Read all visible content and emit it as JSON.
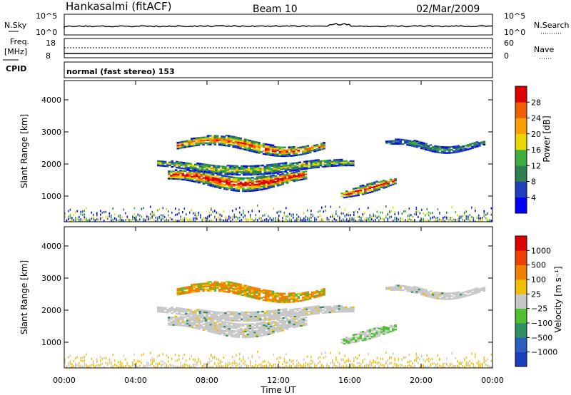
{
  "header": {
    "station": "Hankasalmi (fitACF)",
    "beam": "Beam 10",
    "date": "02/Mar/2009"
  },
  "noise_panel": {
    "left_label": "N.Sky",
    "right_label": "N.Search",
    "left_ticks": [
      "10^5",
      "10^0"
    ],
    "right_ticks": [
      "10^5",
      "10^0"
    ]
  },
  "freq_panel": {
    "left_label_1": "Freq.",
    "left_label_2": "[MHz]",
    "right_label": "Nave",
    "left_ticks": [
      "18",
      "8"
    ],
    "right_ticks": [
      "60",
      "0"
    ]
  },
  "cpid": {
    "label": "CPID",
    "value": "normal (fast stereo) 153"
  },
  "chart_data": [
    {
      "type": "heatmap",
      "name": "power",
      "ylabel": "Slant Range [km]",
      "ylim": [
        200,
        4600
      ],
      "yticks": [
        1000,
        2000,
        3000,
        4000
      ],
      "xlim": [
        0,
        24
      ],
      "colorbar": {
        "label": "Power [dB]",
        "ticks": [
          "4",
          "8",
          "12",
          "16",
          "20",
          "24",
          "28"
        ],
        "colors": [
          "#0000ff",
          "#1f3fbf",
          "#2f7f4f",
          "#3fae3f",
          "#e8d800",
          "#f8a000",
          "#f06000",
          "#e00000"
        ]
      }
    },
    {
      "type": "heatmap",
      "name": "velocity",
      "xlabel": "Time UT",
      "ylabel": "Slant Range [km]",
      "ylim": [
        200,
        4600
      ],
      "yticks": [
        1000,
        2000,
        3000,
        4000
      ],
      "xlim": [
        0,
        24
      ],
      "xticks": [
        "00:00",
        "04:00",
        "08:00",
        "12:00",
        "16:00",
        "20:00",
        "00:00"
      ],
      "colorbar": {
        "label": "Velocity [m s⁻¹]",
        "ticks": [
          "1000",
          "500",
          "100",
          "25",
          "−25",
          "−100",
          "−500",
          "−1000"
        ],
        "colors": [
          "#1a3fbf",
          "#2a5fbf",
          "#2f8f5f",
          "#50c030",
          "#c8c8c8",
          "#f0c000",
          "#f08000",
          "#f04000",
          "#e00000"
        ]
      }
    }
  ]
}
